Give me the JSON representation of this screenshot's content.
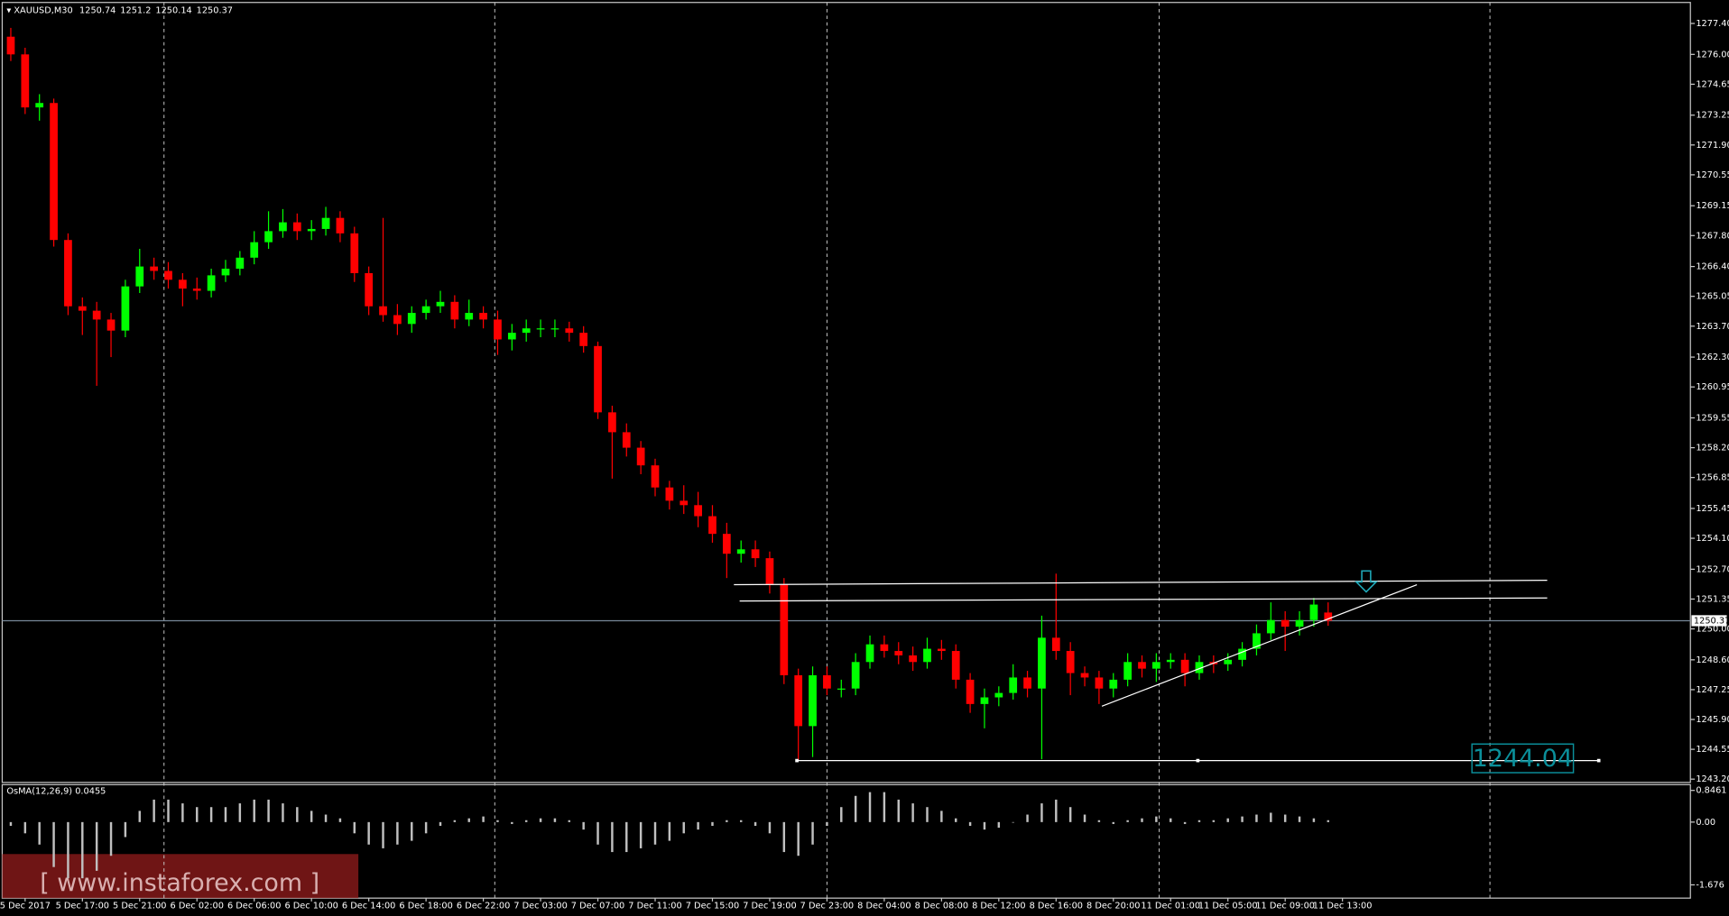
{
  "chart_data": {
    "type": "candlestick",
    "symbol": "XAUUSD,M30",
    "colors": {
      "up": "#00ff00",
      "down": "#ff0000",
      "background": "#000000",
      "grid": "#c8c8c8",
      "price_line": "#778899",
      "support_label": "#0b8f9a"
    },
    "candles": [
      [
        1276.8,
        1277.2,
        1275.7,
        1276.0
      ],
      [
        1276.0,
        1276.3,
        1273.3,
        1273.6
      ],
      [
        1273.6,
        1274.2,
        1273.0,
        1273.8
      ],
      [
        1273.8,
        1274.0,
        1267.3,
        1267.6
      ],
      [
        1267.6,
        1267.9,
        1264.2,
        1264.6
      ],
      [
        1264.6,
        1265.0,
        1263.3,
        1264.4
      ],
      [
        1264.4,
        1264.8,
        1261.0,
        1264.0
      ],
      [
        1264.0,
        1264.3,
        1262.3,
        1263.5
      ],
      [
        1263.5,
        1265.8,
        1263.2,
        1265.5
      ],
      [
        1265.5,
        1267.2,
        1265.2,
        1266.4
      ],
      [
        1266.4,
        1266.8,
        1265.8,
        1266.2
      ],
      [
        1266.2,
        1266.6,
        1265.4,
        1265.8
      ],
      [
        1265.8,
        1266.1,
        1264.6,
        1265.4
      ],
      [
        1265.4,
        1265.9,
        1264.9,
        1265.3
      ],
      [
        1265.3,
        1266.3,
        1265.0,
        1266.0
      ],
      [
        1266.0,
        1266.7,
        1265.7,
        1266.3
      ],
      [
        1266.3,
        1267.1,
        1266.0,
        1266.8
      ],
      [
        1266.8,
        1268.0,
        1266.5,
        1267.5
      ],
      [
        1267.5,
        1268.9,
        1267.2,
        1268.0
      ],
      [
        1268.0,
        1269.0,
        1267.7,
        1268.4
      ],
      [
        1268.4,
        1268.8,
        1267.6,
        1268.0
      ],
      [
        1268.0,
        1268.5,
        1267.6,
        1268.1
      ],
      [
        1268.1,
        1269.1,
        1267.8,
        1268.6
      ],
      [
        1268.6,
        1268.9,
        1267.5,
        1267.9
      ],
      [
        1267.9,
        1268.2,
        1265.7,
        1266.1
      ],
      [
        1266.1,
        1266.4,
        1264.2,
        1264.6
      ],
      [
        1264.6,
        1268.6,
        1263.9,
        1264.2
      ],
      [
        1264.2,
        1264.7,
        1263.3,
        1263.8
      ],
      [
        1263.8,
        1264.6,
        1263.4,
        1264.3
      ],
      [
        1264.3,
        1264.9,
        1264.0,
        1264.6
      ],
      [
        1264.6,
        1265.3,
        1264.3,
        1264.8
      ],
      [
        1264.8,
        1265.1,
        1263.6,
        1264.0
      ],
      [
        1264.0,
        1264.9,
        1263.7,
        1264.3
      ],
      [
        1264.3,
        1264.6,
        1263.6,
        1264.0
      ],
      [
        1264.0,
        1264.4,
        1262.4,
        1263.1
      ],
      [
        1263.1,
        1263.8,
        1262.6,
        1263.4
      ],
      [
        1263.4,
        1264.0,
        1263.0,
        1263.6
      ],
      [
        1263.6,
        1264.0,
        1263.2,
        1263.6
      ],
      [
        1263.6,
        1264.0,
        1263.2,
        1263.6
      ],
      [
        1263.6,
        1263.9,
        1263.0,
        1263.4
      ],
      [
        1263.4,
        1263.7,
        1262.5,
        1262.8
      ],
      [
        1262.8,
        1263.0,
        1259.5,
        1259.8
      ],
      [
        1259.8,
        1260.1,
        1256.8,
        1258.9
      ],
      [
        1258.9,
        1259.3,
        1257.8,
        1258.2
      ],
      [
        1258.2,
        1258.5,
        1257.0,
        1257.4
      ],
      [
        1257.4,
        1257.7,
        1256.0,
        1256.4
      ],
      [
        1256.4,
        1256.7,
        1255.4,
        1255.8
      ],
      [
        1255.8,
        1256.5,
        1255.2,
        1255.6
      ],
      [
        1255.6,
        1256.2,
        1254.6,
        1255.1
      ],
      [
        1255.1,
        1255.6,
        1253.9,
        1254.3
      ],
      [
        1254.3,
        1254.8,
        1252.3,
        1253.4
      ],
      [
        1253.4,
        1254.0,
        1253.0,
        1253.6
      ],
      [
        1253.6,
        1254.0,
        1252.8,
        1253.2
      ],
      [
        1253.2,
        1253.5,
        1251.6,
        1252.0
      ],
      [
        1252.0,
        1252.3,
        1247.5,
        1247.9
      ],
      [
        1247.9,
        1248.2,
        1244.04,
        1245.6
      ],
      [
        1245.6,
        1248.3,
        1244.2,
        1247.9
      ],
      [
        1247.9,
        1248.3,
        1247.0,
        1247.3
      ],
      [
        1247.3,
        1247.7,
        1246.9,
        1247.3
      ],
      [
        1247.3,
        1248.9,
        1247.0,
        1248.5
      ],
      [
        1248.5,
        1249.7,
        1248.2,
        1249.3
      ],
      [
        1249.3,
        1249.7,
        1248.7,
        1249.0
      ],
      [
        1249.0,
        1249.4,
        1248.4,
        1248.8
      ],
      [
        1248.8,
        1249.2,
        1248.1,
        1248.5
      ],
      [
        1248.5,
        1249.6,
        1248.2,
        1249.1
      ],
      [
        1249.1,
        1249.5,
        1248.6,
        1249.0
      ],
      [
        1249.0,
        1249.3,
        1247.3,
        1247.7
      ],
      [
        1247.7,
        1248.0,
        1246.2,
        1246.6
      ],
      [
        1246.6,
        1247.3,
        1245.5,
        1246.9
      ],
      [
        1246.9,
        1247.4,
        1246.5,
        1247.1
      ],
      [
        1247.1,
        1248.4,
        1246.8,
        1247.8
      ],
      [
        1247.8,
        1248.1,
        1246.9,
        1247.3
      ],
      [
        1247.3,
        1250.6,
        1244.1,
        1249.6
      ],
      [
        1249.6,
        1252.5,
        1248.6,
        1249.0
      ],
      [
        1249.0,
        1249.4,
        1247.0,
        1248.0
      ],
      [
        1248.0,
        1248.3,
        1247.4,
        1247.8
      ],
      [
        1247.8,
        1248.1,
        1246.6,
        1247.3
      ],
      [
        1247.3,
        1248.0,
        1246.9,
        1247.7
      ],
      [
        1247.7,
        1248.9,
        1247.4,
        1248.5
      ],
      [
        1248.5,
        1248.8,
        1247.8,
        1248.2
      ],
      [
        1248.2,
        1248.9,
        1247.6,
        1248.5
      ],
      [
        1248.5,
        1248.9,
        1248.2,
        1248.6
      ],
      [
        1248.6,
        1248.9,
        1247.4,
        1248.0
      ],
      [
        1248.0,
        1248.8,
        1247.7,
        1248.5
      ],
      [
        1248.5,
        1248.8,
        1248.0,
        1248.4
      ],
      [
        1248.4,
        1248.9,
        1248.1,
        1248.6
      ],
      [
        1248.6,
        1249.4,
        1248.3,
        1249.1
      ],
      [
        1249.1,
        1250.2,
        1248.8,
        1249.8
      ],
      [
        1249.8,
        1251.2,
        1249.5,
        1250.4
      ],
      [
        1250.4,
        1250.8,
        1249.0,
        1250.1
      ],
      [
        1250.1,
        1250.8,
        1249.7,
        1250.4
      ],
      [
        1250.4,
        1251.4,
        1250.1,
        1251.1
      ],
      [
        1250.74,
        1251.2,
        1250.14,
        1250.37
      ]
    ],
    "xlim": [
      -0.6,
      117.3
    ],
    "ylim": [
      1243.05,
      1278.35
    ],
    "xticks": [
      {
        "value": 1,
        "label": "5 Dec 2017"
      },
      {
        "value": 5,
        "label": "5 Dec 17:00"
      },
      {
        "value": 9,
        "label": "5 Dec 21:00"
      },
      {
        "value": 13,
        "label": "6 Dec 02:00"
      },
      {
        "value": 17,
        "label": "6 Dec 06:00"
      },
      {
        "value": 21,
        "label": "6 Dec 10:00"
      },
      {
        "value": 25,
        "label": "6 Dec 14:00"
      },
      {
        "value": 29,
        "label": "6 Dec 18:00"
      },
      {
        "value": 33,
        "label": "6 Dec 22:00"
      },
      {
        "value": 37,
        "label": "7 Dec 03:00"
      },
      {
        "value": 41,
        "label": "7 Dec 07:00"
      },
      {
        "value": 45,
        "label": "7 Dec 11:00"
      },
      {
        "value": 49,
        "label": "7 Dec 15:00"
      },
      {
        "value": 53,
        "label": "7 Dec 19:00"
      },
      {
        "value": 57,
        "label": "7 Dec 23:00"
      },
      {
        "value": 61,
        "label": "8 Dec 04:00"
      },
      {
        "value": 65,
        "label": "8 Dec 08:00"
      },
      {
        "value": 69,
        "label": "8 Dec 12:00"
      },
      {
        "value": 73,
        "label": "8 Dec 16:00"
      },
      {
        "value": 77,
        "label": "8 Dec 20:00"
      },
      {
        "value": 81,
        "label": "11 Dec 01:00"
      },
      {
        "value": 85,
        "label": "11 Dec 05:00"
      },
      {
        "value": 89,
        "label": "11 Dec 09:00"
      },
      {
        "value": 93,
        "label": "11 Dec 13:00"
      }
    ],
    "yticks": [
      {
        "value": 1277.4,
        "label": "1277.40"
      },
      {
        "value": 1276,
        "label": "1276.00"
      },
      1274.65,
      1273.25,
      {
        "value": 1271.9,
        "label": "1271.90"
      },
      1270.55,
      1269.15,
      {
        "value": 1267.8,
        "label": "1267.80"
      },
      {
        "value": 1266.4,
        "label": "1266.40"
      },
      1265.05,
      {
        "value": 1263.7,
        "label": "1263.70"
      },
      {
        "value": 1262.3,
        "label": "1262.30"
      },
      1260.95,
      1259.55,
      {
        "value": 1258.2,
        "label": "1258.20"
      },
      1256.85,
      1255.45,
      {
        "value": 1254.1,
        "label": "1254.10"
      },
      {
        "value": 1252.7,
        "label": "1252.70"
      },
      1251.35,
      {
        "value": 1250,
        "label": "1250.00"
      },
      {
        "value": 1248.6,
        "label": "1248.60"
      },
      1247.25,
      {
        "value": 1245.9,
        "label": "1245.90"
      },
      1244.55,
      {
        "value": 1243.2,
        "label": "1243.20"
      }
    ],
    "vgrid": [
      10.7,
      33.8,
      57,
      80.2,
      103.3
    ],
    "grid": true,
    "lines": [
      {
        "from": [
          50.5,
          1252.0
        ],
        "to": [
          107.3,
          1252.2
        ]
      },
      {
        "from": [
          50.9,
          1251.26
        ],
        "to": [
          107.3,
          1251.4
        ]
      },
      {
        "from": [
          76.2,
          1246.5
        ],
        "to": [
          98.2,
          1252.0
        ]
      }
    ],
    "support": {
      "value": 1244.04,
      "from": 54.9,
      "to": 110.9
    },
    "osma": {
      "title": "OsMA(12,26,9) 0.0455",
      "color": "#c0c0c0",
      "values": [
        -0.1,
        -0.3,
        -0.6,
        -1.2,
        -1.5,
        -1.5,
        -1.3,
        -0.9,
        -0.4,
        0.3,
        0.6,
        0.6,
        0.5,
        0.4,
        0.4,
        0.4,
        0.5,
        0.6,
        0.6,
        0.5,
        0.4,
        0.3,
        0.2,
        0.1,
        -0.3,
        -0.6,
        -0.7,
        -0.6,
        -0.5,
        -0.3,
        -0.1,
        0.05,
        0.1,
        0.15,
        0.05,
        -0.05,
        0.05,
        0.1,
        0.1,
        0.05,
        -0.2,
        -0.6,
        -0.8,
        -0.8,
        -0.7,
        -0.6,
        -0.5,
        -0.3,
        -0.2,
        -0.1,
        0.05,
        0.05,
        -0.1,
        -0.3,
        -0.8,
        -0.9,
        -0.6,
        -0.1,
        0.4,
        0.7,
        0.8,
        0.8,
        0.6,
        0.5,
        0.4,
        0.3,
        0.1,
        -0.1,
        -0.2,
        -0.15,
        0.0,
        0.2,
        0.5,
        0.6,
        0.4,
        0.2,
        0.05,
        -0.05,
        0.05,
        0.1,
        0.15,
        0.1,
        -0.05,
        0.05,
        0.05,
        0.1,
        0.15,
        0.2,
        0.25,
        0.2,
        0.15,
        0.1,
        0.05
      ],
      "ylim": [
        -2.03,
        1.0
      ],
      "yticks": [
        0.8461,
        {
          "value": 0,
          "label": "0.00"
        },
        -1.676
      ]
    },
    "watermark": "[ www.instaforex.com ]"
  }
}
